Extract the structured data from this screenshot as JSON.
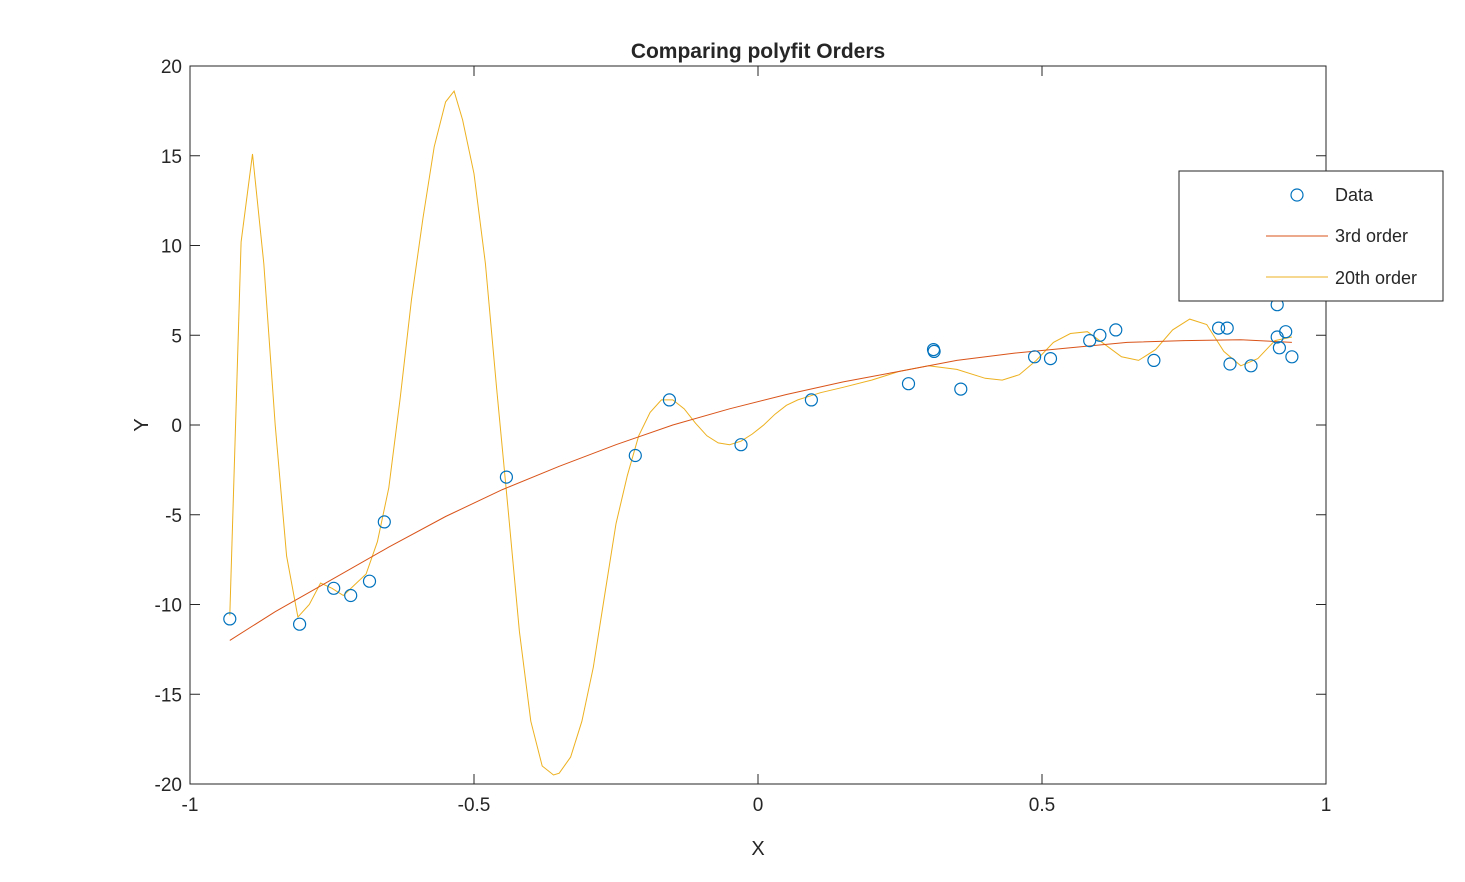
{
  "chart_data": {
    "type": "scatter",
    "title": "Comparing polyfit Orders",
    "xlabel": "X",
    "ylabel": "Y",
    "xlim": [
      -1,
      1
    ],
    "ylim": [
      -20,
      20
    ],
    "xticks": [
      -1,
      -0.5,
      0,
      0.5,
      1
    ],
    "yticks": [
      -20,
      -15,
      -10,
      -5,
      0,
      5,
      10,
      15,
      20
    ],
    "xtick_labels": [
      "-1",
      "-0.5",
      "0",
      "0.5",
      "1"
    ],
    "ytick_labels": [
      "-20",
      "-15",
      "-10",
      "-5",
      "0",
      "5",
      "10",
      "15",
      "20"
    ],
    "grid": false,
    "legend_position": "top-right",
    "colors": {
      "data": "#0072BD",
      "order3": "#D95319",
      "order20": "#EDB120",
      "axes": "#262626"
    },
    "series": [
      {
        "name": "Data",
        "kind": "markers",
        "x": [
          -0.93,
          -0.807,
          -0.747,
          -0.717,
          -0.684,
          -0.658,
          -0.443,
          -0.216,
          -0.156,
          -0.03,
          0.094,
          0.265,
          0.309,
          0.31,
          0.357,
          0.487,
          0.515,
          0.584,
          0.602,
          0.63,
          0.697,
          0.811,
          0.826,
          0.831,
          0.868,
          0.914,
          0.914,
          0.918,
          0.929,
          0.94
        ],
        "y": [
          -10.8,
          -11.1,
          -9.1,
          -9.5,
          -8.7,
          -5.4,
          -2.9,
          -1.7,
          1.4,
          -1.1,
          1.4,
          2.3,
          4.2,
          4.1,
          2.0,
          3.8,
          3.7,
          4.7,
          5.0,
          5.3,
          3.6,
          5.4,
          5.4,
          3.4,
          3.3,
          6.7,
          4.9,
          4.3,
          5.2,
          3.8
        ]
      },
      {
        "name": "3rd order",
        "kind": "line",
        "x": [
          -0.93,
          -0.85,
          -0.75,
          -0.65,
          -0.55,
          -0.45,
          -0.35,
          -0.25,
          -0.15,
          -0.05,
          0.05,
          0.15,
          0.25,
          0.35,
          0.45,
          0.55,
          0.65,
          0.75,
          0.85,
          0.94
        ],
        "y": [
          -12.0,
          -10.4,
          -8.6,
          -6.8,
          -5.1,
          -3.6,
          -2.3,
          -1.1,
          0.0,
          0.9,
          1.7,
          2.4,
          3.0,
          3.6,
          4.0,
          4.3,
          4.6,
          4.7,
          4.75,
          4.6
        ]
      },
      {
        "name": "20th order",
        "kind": "line",
        "x": [
          -0.93,
          -0.91,
          -0.89,
          -0.87,
          -0.85,
          -0.83,
          -0.81,
          -0.79,
          -0.77,
          -0.75,
          -0.73,
          -0.71,
          -0.69,
          -0.67,
          -0.65,
          -0.63,
          -0.61,
          -0.59,
          -0.57,
          -0.55,
          -0.535,
          -0.52,
          -0.5,
          -0.48,
          -0.46,
          -0.44,
          -0.42,
          -0.4,
          -0.38,
          -0.36,
          -0.35,
          -0.33,
          -0.31,
          -0.29,
          -0.27,
          -0.25,
          -0.23,
          -0.21,
          -0.19,
          -0.17,
          -0.15,
          -0.13,
          -0.11,
          -0.09,
          -0.07,
          -0.05,
          -0.03,
          -0.01,
          0.01,
          0.03,
          0.05,
          0.07,
          0.09,
          0.11,
          0.15,
          0.2,
          0.25,
          0.3,
          0.35,
          0.4,
          0.43,
          0.46,
          0.49,
          0.52,
          0.55,
          0.58,
          0.61,
          0.64,
          0.67,
          0.7,
          0.73,
          0.76,
          0.79,
          0.82,
          0.85,
          0.88,
          0.91,
          0.94
        ],
        "y": [
          -10.6,
          10.2,
          15.1,
          9.0,
          0.0,
          -7.3,
          -10.7,
          -10.0,
          -8.8,
          -9.1,
          -9.5,
          -8.9,
          -8.3,
          -6.5,
          -3.5,
          1.5,
          7.0,
          11.5,
          15.5,
          18.0,
          18.6,
          17.0,
          14.0,
          9.0,
          2.0,
          -4.7,
          -11.5,
          -16.5,
          -19.0,
          -19.5,
          -19.4,
          -18.5,
          -16.5,
          -13.5,
          -9.5,
          -5.5,
          -2.8,
          -0.6,
          0.7,
          1.4,
          1.4,
          0.9,
          0.1,
          -0.6,
          -1.0,
          -1.1,
          -0.9,
          -0.5,
          0.0,
          0.6,
          1.1,
          1.4,
          1.6,
          1.8,
          2.1,
          2.5,
          3.0,
          3.3,
          3.1,
          2.6,
          2.5,
          2.8,
          3.6,
          4.6,
          5.1,
          5.2,
          4.5,
          3.8,
          3.6,
          4.2,
          5.3,
          5.9,
          5.6,
          4.1,
          3.3,
          3.7,
          4.7,
          4.9
        ]
      }
    ]
  }
}
